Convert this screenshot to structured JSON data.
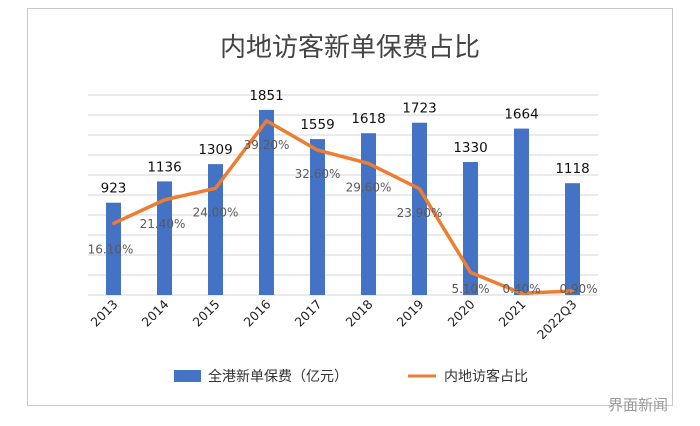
{
  "chart_data": {
    "type": "bar",
    "title": "内地访客新单保费占比",
    "categories": [
      "2013",
      "2014",
      "2015",
      "2016",
      "2017",
      "2018",
      "2019",
      "2020",
      "2021",
      "2022Q3"
    ],
    "series": [
      {
        "name": "全港新单保费（亿元）",
        "type": "bar",
        "values": [
          923,
          1136,
          1309,
          1851,
          1559,
          1618,
          1723,
          1330,
          1664,
          1118
        ],
        "labels": [
          "923",
          "1136",
          "1309",
          "1851",
          "1559",
          "1618",
          "1723",
          "1330",
          "1664",
          "1118"
        ],
        "color": "#4472C4"
      },
      {
        "name": "内地访客占比",
        "type": "line",
        "values": [
          16.1,
          21.4,
          24.0,
          39.2,
          32.6,
          29.6,
          23.9,
          5.1,
          0.4,
          0.9
        ],
        "labels": [
          "16.10%",
          "21.40%",
          "24.00%",
          "39.20%",
          "32.60%",
          "29.60%",
          "23.90%",
          "5.10%",
          "0.40%",
          "0.90%"
        ],
        "color": "#ED7D31"
      }
    ],
    "ylim": [
      0,
      2000
    ],
    "y2lim": [
      0,
      45
    ],
    "grid": true,
    "legend_position": "bottom"
  },
  "watermark": "界面新闻"
}
